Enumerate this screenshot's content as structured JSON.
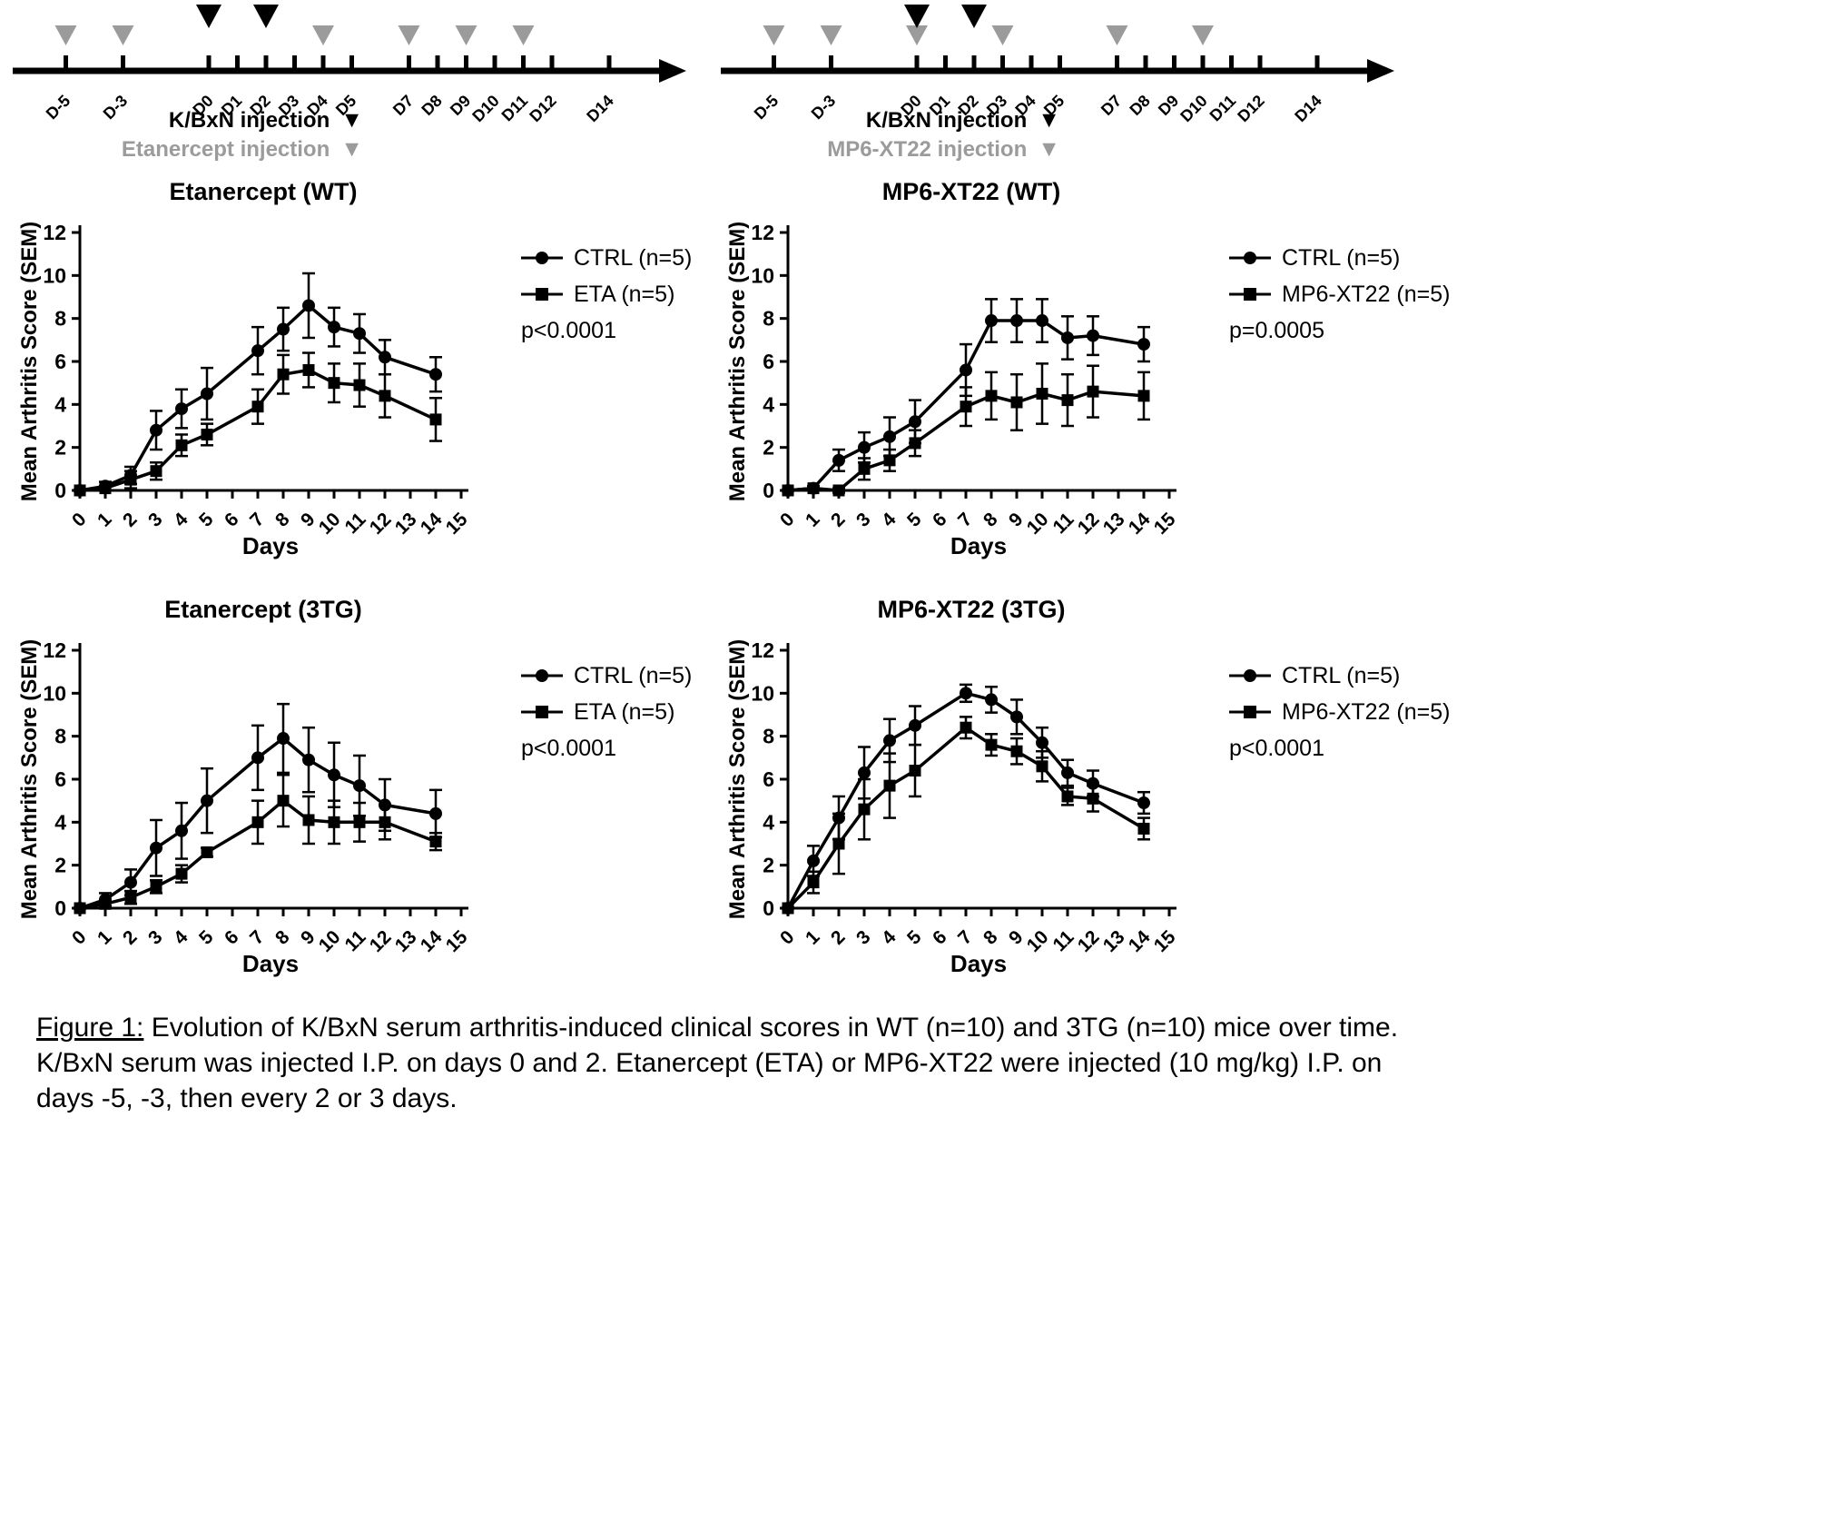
{
  "colors": {
    "black": "#000000",
    "gray": "#9b9b9b"
  },
  "timelines": [
    {
      "ticks": [
        "D-5",
        "D-3",
        "D0",
        "D1",
        "D2",
        "D3",
        "D4",
        "D5",
        "D7",
        "D8",
        "D9",
        "D10",
        "D11",
        "D12",
        "D14"
      ],
      "tick_days": [
        -5,
        -3,
        0,
        1,
        2,
        3,
        4,
        5,
        7,
        8,
        9,
        10,
        11,
        12,
        14
      ],
      "black_arrow_days": [
        0,
        2
      ],
      "gray_arrow_days": [
        -5,
        -3,
        4,
        7,
        9,
        11
      ],
      "legend": {
        "black_label": "K/BxN injection",
        "gray_label": "Etanercept injection"
      }
    },
    {
      "ticks": [
        "D-5",
        "D-3",
        "D0",
        "D1",
        "D2",
        "D3",
        "D4",
        "D5",
        "D7",
        "D8",
        "D9",
        "D10",
        "D11",
        "D12",
        "D14"
      ],
      "tick_days": [
        -5,
        -3,
        0,
        1,
        2,
        3,
        4,
        5,
        7,
        8,
        9,
        10,
        11,
        12,
        14
      ],
      "black_arrow_days": [
        0,
        2
      ],
      "gray_arrow_days": [
        -5,
        -3,
        0,
        3,
        7,
        10
      ],
      "legend": {
        "black_label": "K/BxN injection",
        "gray_label": "MP6-XT22 injection"
      }
    }
  ],
  "chart_data": [
    {
      "type": "line",
      "title": "Etanercept (WT)",
      "xlabel": "Days",
      "ylabel": "Mean Arthritis Score (SEM)",
      "xlim": [
        0,
        15
      ],
      "ylim": [
        0,
        12
      ],
      "xticks": [
        0,
        1,
        2,
        3,
        4,
        5,
        6,
        7,
        8,
        9,
        10,
        11,
        12,
        13,
        14,
        15
      ],
      "yticks": [
        0,
        2,
        4,
        6,
        8,
        10,
        12
      ],
      "p_label": "p<0.0001",
      "x": [
        0,
        1,
        2,
        3,
        4,
        5,
        7,
        8,
        9,
        10,
        11,
        12,
        14
      ],
      "series": [
        {
          "name": "CTRL (n=5)",
          "marker": "circle",
          "values": [
            0,
            0.2,
            0.7,
            2.8,
            3.8,
            4.5,
            6.5,
            7.5,
            8.6,
            7.6,
            7.3,
            6.2,
            5.4
          ],
          "sem": [
            0,
            0.2,
            0.4,
            0.9,
            0.9,
            1.2,
            1.1,
            1.0,
            1.5,
            0.9,
            0.9,
            0.8,
            0.8
          ]
        },
        {
          "name": "ETA (n=5)",
          "marker": "square",
          "values": [
            0,
            0.1,
            0.5,
            0.9,
            2.1,
            2.6,
            3.9,
            5.4,
            5.6,
            5.0,
            4.9,
            4.4,
            3.3
          ],
          "sem": [
            0,
            0.1,
            0.4,
            0.4,
            0.5,
            0.5,
            0.8,
            0.9,
            0.8,
            0.9,
            1.0,
            1.0,
            1.0
          ]
        }
      ]
    },
    {
      "type": "line",
      "title": "MP6-XT22 (WT)",
      "xlabel": "Days",
      "ylabel": "Mean Arthritis Score (SEM)",
      "xlim": [
        0,
        15
      ],
      "ylim": [
        0,
        12
      ],
      "xticks": [
        0,
        1,
        2,
        3,
        4,
        5,
        6,
        7,
        8,
        9,
        10,
        11,
        12,
        13,
        14,
        15
      ],
      "yticks": [
        0,
        2,
        4,
        6,
        8,
        10,
        12
      ],
      "p_label": "p=0.0005",
      "x": [
        0,
        1,
        2,
        3,
        4,
        5,
        7,
        8,
        9,
        10,
        11,
        12,
        14
      ],
      "series": [
        {
          "name": "CTRL (n=5)",
          "marker": "circle",
          "values": [
            0,
            0.1,
            1.4,
            2.0,
            2.5,
            3.2,
            5.6,
            7.9,
            7.9,
            7.9,
            7.1,
            7.2,
            6.8
          ],
          "sem": [
            0,
            0.1,
            0.5,
            0.7,
            0.9,
            1.0,
            1.2,
            1.0,
            1.0,
            1.0,
            1.0,
            0.9,
            0.8
          ]
        },
        {
          "name": "MP6-XT22 (n=5)",
          "marker": "square",
          "values": [
            0,
            0.1,
            0.0,
            1.0,
            1.4,
            2.2,
            3.9,
            4.4,
            4.1,
            4.5,
            4.2,
            4.6,
            4.4
          ],
          "sem": [
            0,
            0.1,
            0.1,
            0.5,
            0.5,
            0.6,
            0.9,
            1.1,
            1.3,
            1.4,
            1.2,
            1.2,
            1.1
          ]
        }
      ]
    },
    {
      "type": "line",
      "title": "Etanercept (3TG)",
      "xlabel": "Days",
      "ylabel": "Mean Arthritis Score (SEM)",
      "xlim": [
        0,
        15
      ],
      "ylim": [
        0,
        12
      ],
      "xticks": [
        0,
        1,
        2,
        3,
        4,
        5,
        6,
        7,
        8,
        9,
        10,
        11,
        12,
        13,
        14,
        15
      ],
      "yticks": [
        0,
        2,
        4,
        6,
        8,
        10,
        12
      ],
      "p_label": "p<0.0001",
      "x": [
        0,
        1,
        2,
        3,
        4,
        5,
        7,
        8,
        9,
        10,
        11,
        12,
        14
      ],
      "series": [
        {
          "name": "CTRL (n=5)",
          "marker": "circle",
          "values": [
            0,
            0.4,
            1.2,
            2.8,
            3.6,
            5.0,
            7.0,
            7.9,
            6.9,
            6.2,
            5.7,
            4.8,
            4.4
          ],
          "sem": [
            0,
            0.3,
            0.6,
            1.3,
            1.3,
            1.5,
            1.5,
            1.6,
            1.5,
            1.5,
            1.4,
            1.2,
            1.1
          ]
        },
        {
          "name": "ETA (n=5)",
          "marker": "square",
          "values": [
            0,
            0.2,
            0.5,
            1.0,
            1.6,
            2.6,
            4.0,
            5.0,
            4.1,
            4.0,
            4.0,
            4.0,
            3.1
          ],
          "sem": [
            0,
            0.1,
            0.3,
            0.3,
            0.4,
            0.2,
            1.0,
            1.2,
            1.1,
            1.0,
            0.9,
            0.8,
            0.4
          ]
        }
      ]
    },
    {
      "type": "line",
      "title": "MP6-XT22 (3TG)",
      "xlabel": "Days",
      "ylabel": "Mean Arthritis Score (SEM)",
      "xlim": [
        0,
        15
      ],
      "ylim": [
        0,
        12
      ],
      "xticks": [
        0,
        1,
        2,
        3,
        4,
        5,
        6,
        7,
        8,
        9,
        10,
        11,
        12,
        13,
        14,
        15
      ],
      "yticks": [
        0,
        2,
        4,
        6,
        8,
        10,
        12
      ],
      "p_label": "p<0.0001",
      "x": [
        0,
        1,
        2,
        3,
        4,
        5,
        7,
        8,
        9,
        10,
        11,
        12,
        14
      ],
      "series": [
        {
          "name": "CTRL (n=5)",
          "marker": "circle",
          "values": [
            0,
            2.2,
            4.2,
            6.3,
            7.8,
            8.5,
            10.0,
            9.7,
            8.9,
            7.7,
            6.3,
            5.8,
            4.9
          ],
          "sem": [
            0,
            0.7,
            1.0,
            1.2,
            1.0,
            0.9,
            0.4,
            0.6,
            0.8,
            0.7,
            0.6,
            0.6,
            0.5
          ]
        },
        {
          "name": "MP6-XT22 (n=5)",
          "marker": "square",
          "values": [
            0,
            1.2,
            3.0,
            4.6,
            5.7,
            6.4,
            8.4,
            7.6,
            7.3,
            6.6,
            5.2,
            5.1,
            3.7
          ],
          "sem": [
            0,
            0.5,
            1.4,
            1.4,
            1.5,
            1.2,
            0.5,
            0.5,
            0.6,
            0.7,
            0.4,
            0.6,
            0.5
          ]
        }
      ]
    }
  ],
  "caption": {
    "label": "Figure 1:",
    "text": " Evolution of K/BxN serum arthritis-induced clinical scores in WT (n=10) and 3TG (n=10) mice over time. K/BxN serum was injected I.P. on days 0 and 2. Etanercept (ETA) or MP6-XT22 were injected (10 mg/kg) I.P. on days -5, -3, then every 2 or 3 days."
  }
}
